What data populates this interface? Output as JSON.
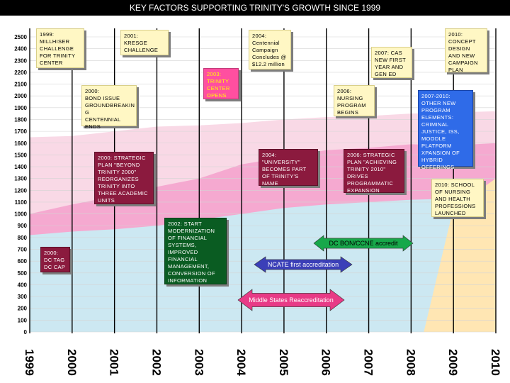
{
  "title": "KEY FACTORS SUPPORTING TRINITY'S GROWTH SINCE 1999",
  "chart_data": {
    "type": "area",
    "title": "KEY FACTORS SUPPORTING TRINITY'S GROWTH SINCE 1999",
    "x": [
      1999,
      2000,
      2001,
      2002,
      2003,
      2004,
      2005,
      2006,
      2007,
      2008,
      2009,
      2010
    ],
    "x_tick_labels": [
      "1999",
      "2000",
      "2001",
      "2002",
      "2003",
      "2004",
      "2005",
      "2006",
      "2007",
      "2008",
      "2009",
      "2010"
    ],
    "ylim": [
      0,
      2500
    ],
    "y_ticks": [
      0,
      100,
      200,
      300,
      400,
      500,
      600,
      700,
      800,
      900,
      1000,
      1100,
      1200,
      1300,
      1400,
      1500,
      1600,
      1700,
      1800,
      1900,
      2000,
      2100,
      2200,
      2300,
      2400,
      2500
    ],
    "series": [
      {
        "color": "#cce8f2",
        "values": [
          820,
          850,
          870,
          900,
          950,
          1000,
          1050,
          1080,
          1100,
          1120,
          1130,
          1150
        ]
      },
      {
        "color": "#f5a9d0",
        "values": [
          1000,
          1080,
          1150,
          1230,
          1300,
          1420,
          1480,
          1540,
          1560,
          1590,
          1580,
          1600
        ]
      },
      {
        "color": "#f9d9e6",
        "values": [
          1650,
          1660,
          1700,
          1740,
          1750,
          1770,
          1800,
          1820,
          1830,
          1850,
          1860,
          1870
        ]
      },
      {
        "color": "#ffe6b3",
        "values": [
          0,
          0,
          0,
          0,
          0,
          0,
          0,
          0,
          0,
          0,
          1050,
          1300
        ]
      }
    ],
    "grid": true,
    "legend": "none"
  },
  "events": [
    {
      "id": "e1999",
      "text": "1999:\nMILLHISER\nCHALLENGE\nFOR TRINITY\nCENTER",
      "style": "yellow"
    },
    {
      "id": "e2001k",
      "text": "2001:\nKRESGE\nCHALLENGE",
      "style": "yellow"
    },
    {
      "id": "e2004c",
      "text": "2004:\nCentennial\nCampaign\nConcludes @\n$12.2 million",
      "style": "yellow"
    },
    {
      "id": "e2010c",
      "text": "2010:\nCONCEPT\nDESIGN\nAND NEW\nCAMPAIGN\nPLAN",
      "style": "yellow"
    },
    {
      "id": "e2007",
      "text": "2007: CAS\nNEW FIRST\nYEAR AND\nGEN ED",
      "style": "yellow"
    },
    {
      "id": "e2003",
      "text": "2003:\nTRINITY\nCENTER\nOPENS",
      "style": "pink"
    },
    {
      "id": "e2000b",
      "text": "2000:\nBOND ISSUE\nGROUNDBREAKIN\nG\nCENTENNIAL\nENDS",
      "style": "yellow"
    },
    {
      "id": "e2006n",
      "text": "2006:\nNURSING\nPROGRAM\nBEGINS",
      "style": "yellow"
    },
    {
      "id": "e2007o",
      "text": "2007-2010:\nOTHER NEW\nPROGRAM\nELEMENTS:\nCRIMINAL\nJUSTICE, ISS,\nMOODLE\nPLATFORM\nXPANSION OF\nHYBRID\nOFFERINGS",
      "style": "blue"
    },
    {
      "id": "e2000s",
      "text": "2000: STRATEGIC\nPLAN \"BEYOND\nTRINITY 2000\"\nREORGANIZES\nTRINITY INTO\nTHREE ACADEMIC\nUNITS",
      "style": "darkred"
    },
    {
      "id": "e2004u",
      "text": "2004:\n\"UNIVERSITY\"\nBECOMES PART\nOF TRINITY'S\nNAME",
      "style": "darkred"
    },
    {
      "id": "e2006s",
      "text": "2006: STRATEGIC\nPLAN \"ACHIEVING\nTRINITY 2010\"\nDRIVES\nPROGRAMMATIC\nEXPANSION",
      "style": "darkred"
    },
    {
      "id": "e2010s",
      "text": "2010: SCHOOL\nOF NURSING\nAND HEALTH\nPROFESSIONS\nLAUNCHED",
      "style": "yellow"
    },
    {
      "id": "e2002",
      "text": "2002: START\nMODERNIZATION\nOF FINANCIAL\nSYSTEMS,\nIMPROVED\nFINANCIAL\nMANAGEMENT,\nCONVERSION OF\nINFORMATION",
      "style": "green"
    },
    {
      "id": "e2000d",
      "text": "2000:\nDC TAG\nDC CAP",
      "style": "darkred"
    }
  ],
  "accreditations": [
    {
      "label": "DC BON/CCNE  accredit",
      "color": "#17a84a",
      "text_color": "#000000"
    },
    {
      "label": "NCATE first accreditation",
      "color": "#3b3fb8",
      "text_color": "#ffffff"
    },
    {
      "label": "Middle States Reaccreditation",
      "color": "#e83a86",
      "text_color": "#ffffff"
    }
  ]
}
